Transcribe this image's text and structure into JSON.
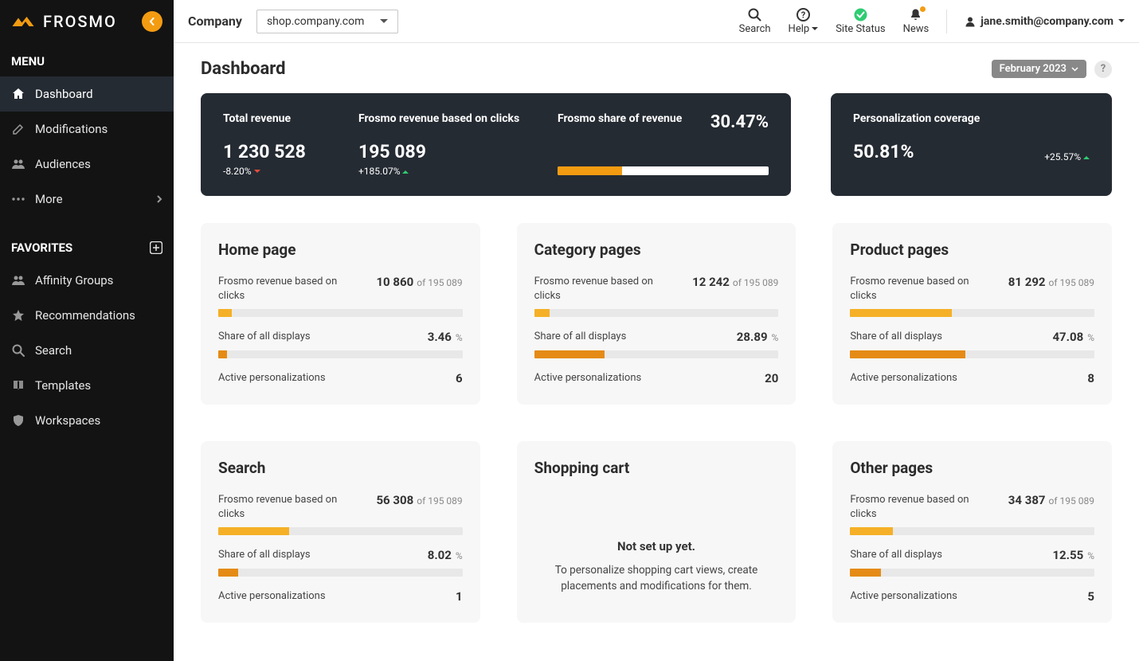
{
  "brand": {
    "name": "FROSMO"
  },
  "sidebar": {
    "menu_label": "MENU",
    "favorites_label": "FAVORITES",
    "menu": [
      {
        "label": "Dashboard",
        "icon": "home"
      },
      {
        "label": "Modifications",
        "icon": "edit"
      },
      {
        "label": "Audiences",
        "icon": "users"
      },
      {
        "label": "More",
        "icon": "dots"
      }
    ],
    "favorites": [
      {
        "label": "Affinity Groups",
        "icon": "users"
      },
      {
        "label": "Recommendations",
        "icon": "star"
      },
      {
        "label": "Search",
        "icon": "search"
      },
      {
        "label": "Templates",
        "icon": "book"
      },
      {
        "label": "Workspaces",
        "icon": "shield"
      }
    ]
  },
  "topbar": {
    "company_label": "Company",
    "site": "shop.company.com",
    "search_label": "Search",
    "help_label": "Help",
    "status_label": "Site Status",
    "news_label": "News",
    "user": "jane.smith@company.com"
  },
  "page": {
    "title": "Dashboard",
    "date_label": "February 2023",
    "dark_left": {
      "total_revenue": {
        "label": "Total revenue",
        "value": "1 230 528",
        "delta": "-8.20%",
        "dir": "down"
      },
      "frosmo_revenue": {
        "label": "Frosmo revenue based on clicks",
        "value": "195 089",
        "delta": "+185.07%",
        "dir": "up"
      },
      "share": {
        "label": "Frosmo share of revenue",
        "value": "30.47%",
        "bar_pct": 30.47,
        "bar_color": "#f39c12",
        "bar_bg": "#ffffff"
      }
    },
    "dark_right": {
      "label": "Personalization coverage",
      "value": "50.81%",
      "delta": "+25.57%",
      "dir": "up"
    },
    "revenue_total_ref": "195 089",
    "cards": [
      {
        "title": "Home page",
        "revenue_label": "Frosmo revenue based on clicks",
        "revenue_value": "10 860",
        "revenue_of": "of  195 089",
        "revenue_bar_pct": 5.57,
        "displays_label": "Share of all displays",
        "displays_value": "3.46",
        "displays_bar_pct": 3.46,
        "active_label": "Active personalizations",
        "active_value": "6"
      },
      {
        "title": "Category pages",
        "revenue_label": "Frosmo revenue based on clicks",
        "revenue_value": "12 242",
        "revenue_of": "of  195 089",
        "revenue_bar_pct": 6.27,
        "displays_label": "Share of all displays",
        "displays_value": "28.89",
        "displays_bar_pct": 28.89,
        "active_label": "Active personalizations",
        "active_value": "20"
      },
      {
        "title": "Product pages",
        "revenue_label": "Frosmo revenue based on clicks",
        "revenue_value": "81 292",
        "revenue_of": "of  195 089",
        "revenue_bar_pct": 41.67,
        "displays_label": "Share of all displays",
        "displays_value": "47.08",
        "displays_bar_pct": 47.08,
        "active_label": "Active personalizations",
        "active_value": "8"
      },
      {
        "title": "Search",
        "revenue_label": "Frosmo revenue based on clicks",
        "revenue_value": "56 308",
        "revenue_of": "of  195 089",
        "revenue_bar_pct": 28.86,
        "displays_label": "Share of all displays",
        "displays_value": "8.02",
        "displays_bar_pct": 8.02,
        "active_label": "Active personalizations",
        "active_value": "1"
      },
      {
        "title": "Shopping cart",
        "empty": true,
        "empty_title": "Not set up yet.",
        "empty_desc": "To personalize shopping cart views, create placements and modifications for them."
      },
      {
        "title": "Other pages",
        "revenue_label": "Frosmo revenue based on clicks",
        "revenue_value": "34 387",
        "revenue_of": "of  195 089",
        "revenue_bar_pct": 17.63,
        "displays_label": "Share of all displays",
        "displays_value": "12.55",
        "displays_bar_pct": 12.55,
        "active_label": "Active personalizations",
        "active_value": "5"
      }
    ],
    "colors": {
      "bar_yellow": "#f5b027",
      "bar_orange": "#e58b15",
      "bar_bg": "#e8e8e8",
      "card_bg": "#f7f7f7",
      "dark_bg": "#252b33"
    }
  }
}
